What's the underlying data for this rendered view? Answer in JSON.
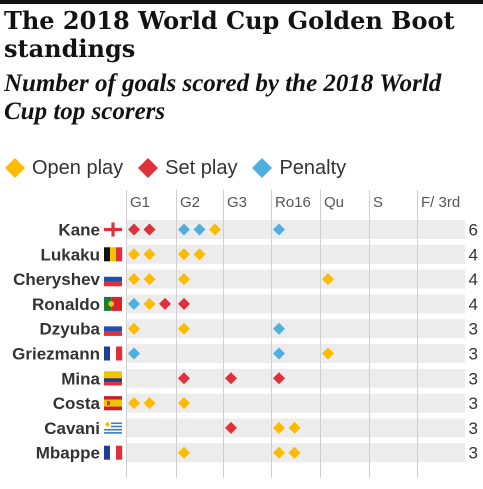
{
  "title": "The 2018 World Cup Golden Boot standings",
  "subtitle": "Number of goals scored by the 2018 World Cup top scorers",
  "legend": [
    {
      "label": "Open play",
      "color": "#ffbb00"
    },
    {
      "label": "Set play",
      "color": "#e0313a"
    },
    {
      "label": "Penalty",
      "color": "#4fb0e0"
    }
  ],
  "chart_data": {
    "type": "table",
    "columns": [
      "G1",
      "G2",
      "G3",
      "Ro16",
      "Qu",
      "S",
      "F/ 3rd"
    ],
    "goal_types": {
      "O": "Open play",
      "S": "Set play",
      "P": "Penalty"
    },
    "players": [
      {
        "name": "Kane",
        "flag": "england",
        "total": 6,
        "goals": [
          [
            "S",
            "S"
          ],
          [
            "P",
            "P",
            "O"
          ],
          [],
          [
            "P"
          ],
          [],
          [],
          []
        ]
      },
      {
        "name": "Lukaku",
        "flag": "belgium",
        "total": 4,
        "goals": [
          [
            "O",
            "O"
          ],
          [
            "O",
            "O"
          ],
          [],
          [],
          [],
          [],
          []
        ]
      },
      {
        "name": "Cheryshev",
        "flag": "russia",
        "total": 4,
        "goals": [
          [
            "O",
            "O"
          ],
          [
            "O"
          ],
          [],
          [],
          [
            "O"
          ],
          [],
          []
        ]
      },
      {
        "name": "Ronaldo",
        "flag": "portugal",
        "total": 4,
        "goals": [
          [
            "P",
            "O",
            "S"
          ],
          [
            "S"
          ],
          [],
          [],
          [],
          [],
          []
        ]
      },
      {
        "name": "Dzyuba",
        "flag": "russia",
        "total": 3,
        "goals": [
          [
            "O"
          ],
          [
            "O"
          ],
          [],
          [
            "P"
          ],
          [],
          [],
          []
        ]
      },
      {
        "name": "Griezmann",
        "flag": "france",
        "total": 3,
        "goals": [
          [
            "P"
          ],
          [],
          [],
          [
            "P"
          ],
          [
            "O"
          ],
          [],
          []
        ]
      },
      {
        "name": "Mina",
        "flag": "colombia",
        "total": 3,
        "goals": [
          [],
          [
            "S"
          ],
          [
            "S"
          ],
          [
            "S"
          ],
          [],
          [],
          []
        ]
      },
      {
        "name": "Costa",
        "flag": "spain",
        "total": 3,
        "goals": [
          [
            "O",
            "O"
          ],
          [
            "O"
          ],
          [],
          [],
          [],
          [],
          []
        ]
      },
      {
        "name": "Cavani",
        "flag": "uruguay",
        "total": 3,
        "goals": [
          [],
          [],
          [
            "S"
          ],
          [
            "O",
            "O"
          ],
          [],
          [],
          []
        ]
      },
      {
        "name": "Mbappe",
        "flag": "france",
        "total": 3,
        "goals": [
          [],
          [
            "O"
          ],
          [],
          [
            "O",
            "O"
          ],
          [],
          [],
          []
        ]
      }
    ]
  }
}
